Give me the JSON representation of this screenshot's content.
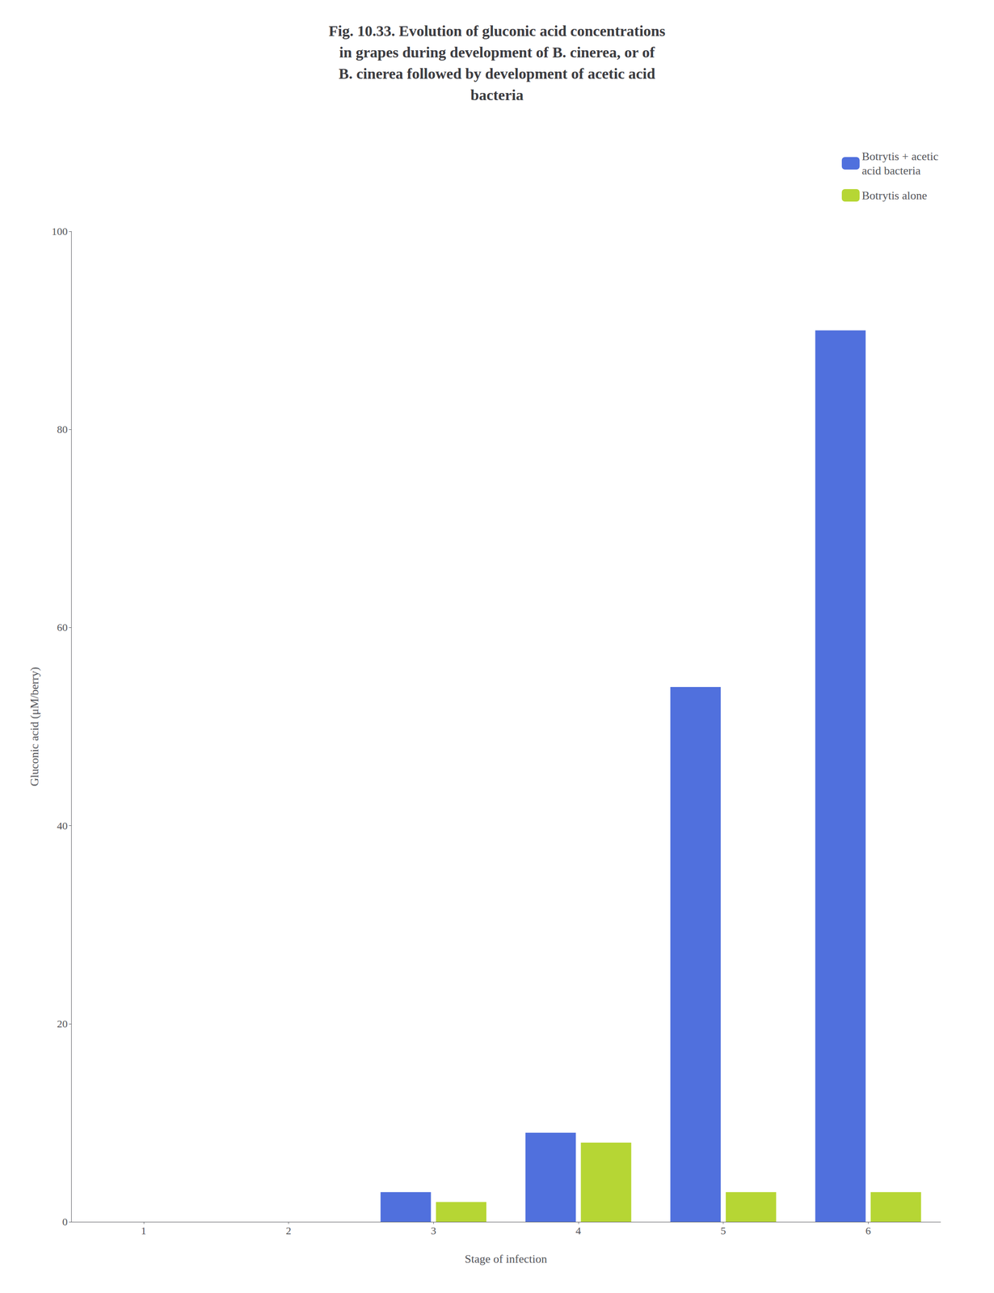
{
  "chart_data": {
    "type": "bar",
    "title": "Fig. 10.33. Evolution of gluconic acid concentrations\nin grapes during development of B. cinerea, or of\nB. cinerea followed by development of acetic acid\nbacteria",
    "xlabel": "Stage of infection",
    "ylabel": "Gluconic acid (μM/berry)",
    "categories": [
      "1",
      "2",
      "3",
      "4",
      "5",
      "6"
    ],
    "series": [
      {
        "name": "Botrytis + acetic\nacid bacteria",
        "values": [
          0,
          0,
          3,
          9,
          54,
          90
        ]
      },
      {
        "name": "Botrytis alone",
        "values": [
          0,
          0,
          2,
          8,
          3,
          3
        ]
      }
    ],
    "ylim": [
      0,
      100
    ],
    "yticks": [
      0,
      20,
      40,
      60,
      80,
      100
    ],
    "grid": false,
    "legend": "upper right"
  }
}
